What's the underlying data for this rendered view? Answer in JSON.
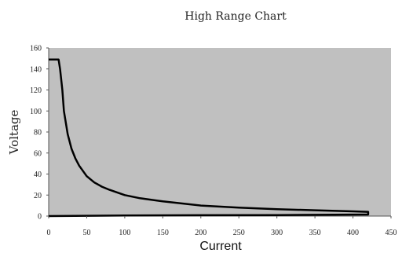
{
  "chart_data": {
    "type": "line",
    "title": "High Range Chart",
    "xlabel": "Current",
    "ylabel": "Voltage",
    "xlim": [
      0,
      450
    ],
    "ylim": [
      0,
      160
    ],
    "xticks": [
      0,
      50,
      100,
      150,
      200,
      250,
      300,
      350,
      400,
      450
    ],
    "yticks": [
      0,
      20,
      40,
      60,
      80,
      100,
      120,
      140,
      160
    ],
    "grid": false,
    "plot_background": "#c0c0c0",
    "line_color": "#000000",
    "series": [
      {
        "x": [
          0,
          13,
          15,
          18,
          20,
          25,
          30,
          35,
          40,
          50,
          60,
          70,
          80,
          100,
          120,
          150,
          200,
          250,
          300,
          350,
          400,
          420,
          420,
          300,
          200,
          100,
          0
        ],
        "y": [
          149,
          149,
          140,
          120,
          100,
          78,
          64,
          55,
          48,
          38,
          32,
          28,
          25,
          20,
          17,
          14,
          10,
          8,
          6.5,
          5.5,
          4.5,
          4,
          1.5,
          1,
          0.8,
          0.5,
          0
        ]
      }
    ]
  }
}
